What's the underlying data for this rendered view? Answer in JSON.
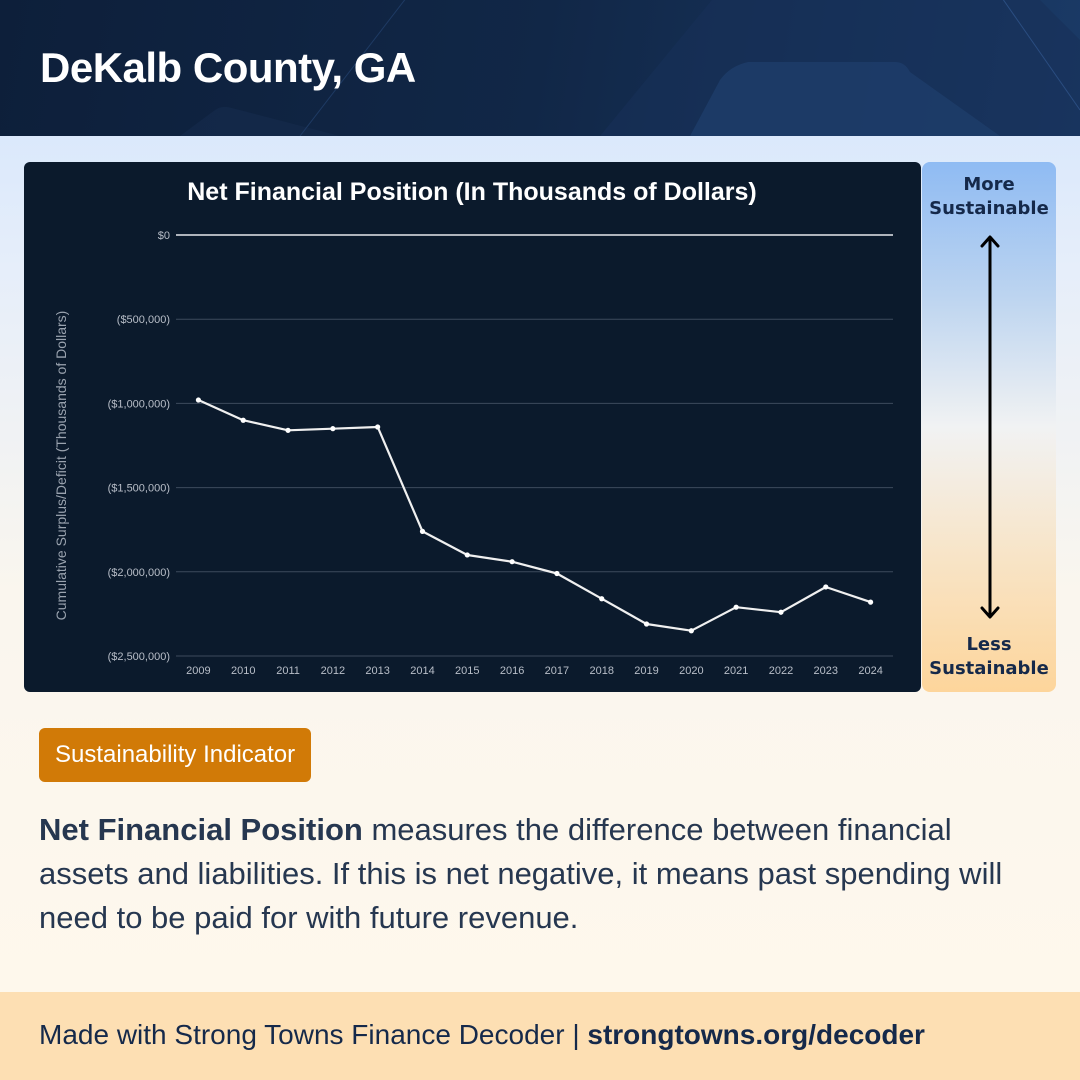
{
  "header": {
    "title": "DeKalb County, GA"
  },
  "chart_data": {
    "type": "line",
    "title": "Net Financial Position (In Thousands of Dollars)",
    "xlabel": "",
    "ylabel": "Cumulative Surplus/Deficit (Thousands of Dollars)",
    "ylim": [
      -2500000,
      0
    ],
    "yticks": [
      0,
      -500000,
      -1000000,
      -1500000,
      -2000000,
      -2500000
    ],
    "ytick_labels": [
      "$0",
      "($500,000)",
      "($1,000,000)",
      "($1,500,000)",
      "($2,000,000)",
      "($2,500,000)"
    ],
    "grid": true,
    "legend": "none",
    "categories": [
      "2009",
      "2010",
      "2011",
      "2012",
      "2013",
      "2014",
      "2015",
      "2016",
      "2017",
      "2018",
      "2019",
      "2020",
      "2021",
      "2022",
      "2023",
      "2024"
    ],
    "series": [
      {
        "name": "Net Financial Position",
        "color": "#ffffff",
        "values": [
          -980000,
          -1100000,
          -1160000,
          -1150000,
          -1140000,
          -1760000,
          -1900000,
          -1940000,
          -2010000,
          -2160000,
          -2310000,
          -2350000,
          -2210000,
          -2240000,
          -2090000,
          -2180000
        ]
      }
    ]
  },
  "scale": {
    "top_label_line1": "More",
    "top_label_line2": "Sustainable",
    "bottom_label_line1": "Less",
    "bottom_label_line2": "Sustainable"
  },
  "badge": {
    "label": "Sustainability Indicator",
    "color": "#d17a07"
  },
  "description": {
    "term": "Net Financial Position",
    "text": " measures the difference between financial assets and liabilities. If this is net negative, it means past spending will need to be paid for with future revenue."
  },
  "footer": {
    "text": "Made with Strong Towns Finance Decoder | ",
    "link": "strongtowns.org/decoder"
  }
}
